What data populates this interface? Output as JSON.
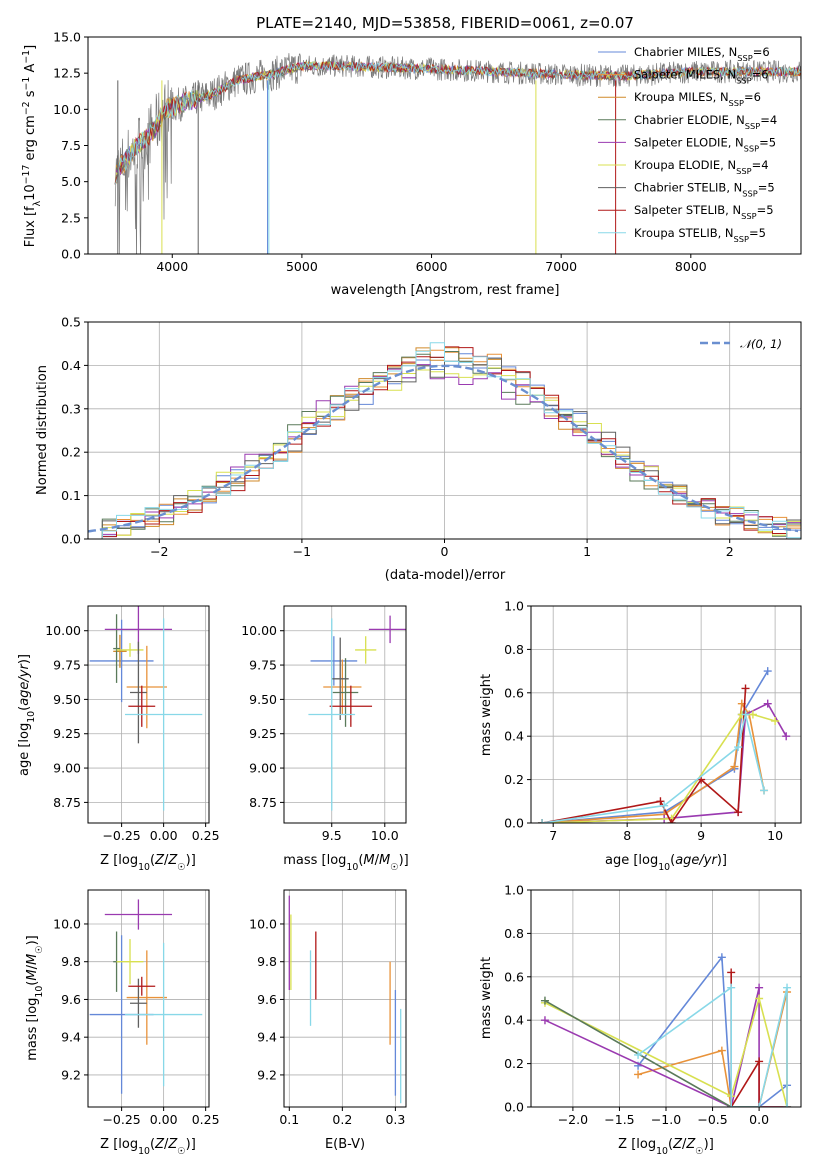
{
  "colors": {
    "Chabrier MILES": "#6488d8",
    "Salpeter MILES": "#e8923a",
    "Kroupa MILES": "#d08a2a",
    "Chabrier ELODIE": "#5a7a5a",
    "Salpeter ELODIE": "#9a3ab0",
    "Kroupa ELODIE": "#d8e050",
    "Chabrier STELIB": "#606060",
    "Salpeter STELIB": "#b01818",
    "Kroupa STELIB": "#88d8e8"
  },
  "chart_data": [
    {
      "id": "spectrum",
      "type": "line",
      "title": "PLATE=2140, MJD=53858, FIBERID=0061, z=0.07",
      "xlabel": "wavelength [Angstrom, rest frame]",
      "ylabel": "Flux [f_λ10^-17 erg cm^-2 s^-1 A^-1]",
      "xlim": [
        3350,
        8850
      ],
      "ylim": [
        0,
        15
      ],
      "xticks": [
        "4000",
        "5000",
        "6000",
        "7000",
        "8000"
      ],
      "yticks": [
        "0.0",
        "2.5",
        "5.0",
        "7.5",
        "10.0",
        "12.5",
        "15.0"
      ],
      "legend_position": "right",
      "legend": [
        {
          "base": "Chabrier MILES, N",
          "sub": "SSP",
          "tail": "=6",
          "color": "#6488d8"
        },
        {
          "base": "Salpeter MILES, N",
          "sub": "SSP",
          "tail": "=6",
          "color": "#e8923a"
        },
        {
          "base": "Kroupa MILES, N",
          "sub": "SSP",
          "tail": "=6",
          "color": "#d08a2a"
        },
        {
          "base": "Chabrier ELODIE, N",
          "sub": "SSP",
          "tail": "=4",
          "color": "#5a7a5a"
        },
        {
          "base": "Salpeter ELODIE, N",
          "sub": "SSP",
          "tail": "=5",
          "color": "#9a3ab0"
        },
        {
          "base": "Kroupa ELODIE, N",
          "sub": "SSP",
          "tail": "=4",
          "color": "#d8e050"
        },
        {
          "base": "Chabrier STELIB, N",
          "sub": "SSP",
          "tail": "=5",
          "color": "#606060"
        },
        {
          "base": "Salpeter STELIB, N",
          "sub": "SSP",
          "tail": "=5",
          "color": "#b01818"
        },
        {
          "base": "Kroupa STELIB, N",
          "sub": "SSP",
          "tail": "=5",
          "color": "#88d8e8"
        }
      ],
      "data_points": [
        [
          3560,
          5.5
        ],
        [
          3700,
          7.2
        ],
        [
          3850,
          8.5
        ],
        [
          3950,
          10.0
        ],
        [
          4100,
          10.5
        ],
        [
          4300,
          11.0
        ],
        [
          4500,
          12.0
        ],
        [
          4800,
          12.5
        ],
        [
          5000,
          13.0
        ],
        [
          5300,
          13.0
        ],
        [
          5600,
          12.9
        ],
        [
          6000,
          12.8
        ],
        [
          6500,
          12.6
        ],
        [
          7000,
          12.4
        ],
        [
          7500,
          12.3
        ],
        [
          8000,
          12.6
        ],
        [
          8500,
          12.6
        ],
        [
          8850,
          12.6
        ]
      ]
    },
    {
      "id": "residuals",
      "type": "line",
      "xlabel": "(data-model)/error",
      "ylabel": "Normed distribution",
      "xlim": [
        -2.5,
        2.5
      ],
      "ylim": [
        0,
        0.5
      ],
      "xticks": [
        "−2",
        "−1",
        "0",
        "1",
        "2"
      ],
      "yticks": [
        "0.0",
        "0.1",
        "0.2",
        "0.3",
        "0.4",
        "0.5"
      ],
      "legend": "𝒩(0, 1)",
      "reference_curve": "normal(0,1)",
      "reference_color": "#6a8fd0"
    },
    {
      "id": "age_vs_Z",
      "type": "scatter",
      "xlabel": "Z [log10(Z/Z☉)]",
      "ylabel": "age  [log10(age/yr)]",
      "xlim": [
        -0.45,
        0.27
      ],
      "ylim": [
        8.6,
        10.18
      ],
      "xticks": [
        "−0.25",
        "0.00",
        "0.25"
      ],
      "yticks": [
        "8.75",
        "9.00",
        "9.25",
        "9.50",
        "9.75",
        "10.00"
      ],
      "points": [
        {
          "model": "Chabrier MILES",
          "x": -0.25,
          "xerr": 0.19,
          "y": 9.78,
          "yerr": 0.3
        },
        {
          "model": "Salpeter MILES",
          "x": -0.1,
          "xerr": 0.12,
          "y": 9.59,
          "yerr": 0.3
        },
        {
          "model": "Kroupa MILES",
          "x": -0.26,
          "xerr": 0.04,
          "y": 9.85,
          "yerr": 0.12
        },
        {
          "model": "Chabrier ELODIE",
          "x": -0.28,
          "xerr": 0.02,
          "y": 9.87,
          "yerr": 0.25
        },
        {
          "model": "Salpeter ELODIE",
          "x": -0.15,
          "xerr": 0.2,
          "y": 10.01,
          "yerr": 0.18
        },
        {
          "model": "Kroupa ELODIE",
          "x": -0.2,
          "xerr": 0.08,
          "y": 9.86,
          "yerr": 0.05
        },
        {
          "model": "Chabrier STELIB",
          "x": -0.15,
          "xerr": 0.05,
          "y": 9.55,
          "yerr": 0.37
        },
        {
          "model": "Salpeter STELIB",
          "x": -0.13,
          "xerr": 0.08,
          "y": 9.45,
          "yerr": 0.15
        },
        {
          "model": "Kroupa STELIB",
          "x": 0.0,
          "xerr": 0.23,
          "y": 9.39,
          "yerr": 0.7
        }
      ]
    },
    {
      "id": "age_vs_mass",
      "type": "scatter",
      "xlabel": "mass [log10(M/M☉)]",
      "xlim": [
        9.05,
        10.2
      ],
      "ylim": [
        8.6,
        10.18
      ],
      "xticks": [
        "9.5",
        "10.0"
      ],
      "yticks": [
        "8.75",
        "9.00",
        "9.25",
        "9.50",
        "9.75",
        "10.00"
      ],
      "points": [
        {
          "model": "Chabrier MILES",
          "x": 9.52,
          "xerr": 0.22,
          "y": 9.78,
          "yerr": 0.18
        },
        {
          "model": "Salpeter MILES",
          "x": 9.6,
          "xerr": 0.18,
          "y": 9.59,
          "yerr": 0.2
        },
        {
          "model": "Chabrier ELODIE",
          "x": 9.63,
          "xerr": 0.12,
          "y": 9.55,
          "yerr": 0.25
        },
        {
          "model": "Salpeter ELODIE",
          "x": 10.05,
          "xerr": 0.2,
          "y": 10.01,
          "yerr": 0.1
        },
        {
          "model": "Kroupa ELODIE",
          "x": 9.82,
          "xerr": 0.1,
          "y": 9.86,
          "yerr": 0.1
        },
        {
          "model": "Chabrier STELIB",
          "x": 9.58,
          "xerr": 0.08,
          "y": 9.65,
          "yerr": 0.3
        },
        {
          "model": "Salpeter STELIB",
          "x": 9.68,
          "xerr": 0.2,
          "y": 9.45,
          "yerr": 0.15
        },
        {
          "model": "Kroupa STELIB",
          "x": 9.5,
          "xerr": 0.22,
          "y": 9.39,
          "yerr": 0.7
        }
      ]
    },
    {
      "id": "weight_vs_age",
      "type": "line",
      "xlabel": "age  [log10(age/yr)]",
      "ylabel": "mass weight",
      "xlim": [
        6.7,
        10.35
      ],
      "ylim": [
        0,
        1
      ],
      "xticks": [
        "7",
        "8",
        "9",
        "10"
      ],
      "yticks": [
        "0.0",
        "0.2",
        "0.4",
        "0.6",
        "0.8",
        "1.0"
      ],
      "series": [
        {
          "model": "Chabrier MILES",
          "points": [
            [
              6.85,
              0.0
            ],
            [
              8.5,
              0.05
            ],
            [
              9.45,
              0.25
            ],
            [
              9.55,
              0.5
            ],
            [
              9.9,
              0.7
            ]
          ]
        },
        {
          "model": "Salpeter MILES",
          "points": [
            [
              6.85,
              0.0
            ],
            [
              8.5,
              0.04
            ],
            [
              9.45,
              0.26
            ],
            [
              9.55,
              0.55
            ],
            [
              9.65,
              0.5
            ],
            [
              9.85,
              0.15
            ]
          ]
        },
        {
          "model": "Salpeter ELODIE",
          "points": [
            [
              6.85,
              0.0
            ],
            [
              8.5,
              0.02
            ],
            [
              9.5,
              0.05
            ],
            [
              9.6,
              0.5
            ],
            [
              9.9,
              0.55
            ],
            [
              10.15,
              0.4
            ]
          ]
        },
        {
          "model": "Kroupa ELODIE",
          "points": [
            [
              6.85,
              0.0
            ],
            [
              8.6,
              0.02
            ],
            [
              9.55,
              0.5
            ],
            [
              9.7,
              0.5
            ],
            [
              10.0,
              0.47
            ]
          ]
        },
        {
          "model": "Salpeter STELIB",
          "points": [
            [
              6.85,
              0.0
            ],
            [
              8.45,
              0.1
            ],
            [
              8.6,
              0.0
            ],
            [
              9.0,
              0.2
            ],
            [
              9.5,
              0.05
            ],
            [
              9.6,
              0.62
            ]
          ]
        },
        {
          "model": "Kroupa STELIB",
          "points": [
            [
              6.85,
              0.0
            ],
            [
              8.5,
              0.08
            ],
            [
              9.5,
              0.35
            ],
            [
              9.6,
              0.5
            ],
            [
              9.85,
              0.15
            ]
          ]
        }
      ]
    },
    {
      "id": "mass_vs_Z",
      "type": "scatter",
      "xlabel": "Z [log10(Z/Z☉)]",
      "ylabel": "mass [log10(M/M☉)]",
      "xlim": [
        -0.45,
        0.27
      ],
      "ylim": [
        9.03,
        10.18
      ],
      "xticks": [
        "−0.25",
        "0.00",
        "0.25"
      ],
      "yticks": [
        "9.2",
        "9.4",
        "9.6",
        "9.8",
        "10.0"
      ],
      "points": [
        {
          "model": "Chabrier MILES",
          "x": -0.25,
          "xerr": 0.19,
          "y": 9.52,
          "yerr": 0.42
        },
        {
          "model": "Salpeter MILES",
          "x": -0.1,
          "xerr": 0.12,
          "y": 9.61,
          "yerr": 0.25
        },
        {
          "model": "Chabrier ELODIE",
          "x": -0.28,
          "xerr": 0.02,
          "y": 9.8,
          "yerr": 0.16
        },
        {
          "model": "Salpeter ELODIE",
          "x": -0.15,
          "xerr": 0.2,
          "y": 10.05,
          "yerr": 0.08
        },
        {
          "model": "Kroupa ELODIE",
          "x": -0.2,
          "xerr": 0.08,
          "y": 9.8,
          "yerr": 0.12
        },
        {
          "model": "Chabrier STELIB",
          "x": -0.15,
          "xerr": 0.05,
          "y": 9.58,
          "yerr": 0.13
        },
        {
          "model": "Salpeter STELIB",
          "x": -0.13,
          "xerr": 0.08,
          "y": 9.67,
          "yerr": 0.05
        },
        {
          "model": "Kroupa STELIB",
          "x": 0.0,
          "xerr": 0.23,
          "y": 9.52,
          "yerr": 0.38
        }
      ]
    },
    {
      "id": "mass_vs_EBV",
      "type": "scatter",
      "xlabel": "E(B-V)",
      "xlim": [
        0.09,
        0.32
      ],
      "ylim": [
        9.03,
        10.18
      ],
      "xticks": [
        "0.1",
        "0.2",
        "0.3"
      ],
      "yticks": [
        "9.2",
        "9.4",
        "9.6",
        "9.8",
        "10.0"
      ],
      "points": [
        {
          "model": "Salpeter ELODIE",
          "x": 0.1,
          "y": 9.9,
          "yerr": 0.25
        },
        {
          "model": "Kroupa ELODIE",
          "x": 0.103,
          "y": 9.85,
          "yerr": 0.2
        },
        {
          "model": "Kroupa STELIB",
          "x": 0.14,
          "y": 9.66,
          "yerr": 0.2
        },
        {
          "model": "Salpeter STELIB",
          "x": 0.15,
          "y": 9.78,
          "yerr": 0.18
        },
        {
          "model": "Salpeter MILES",
          "x": 0.29,
          "y": 9.58,
          "yerr": 0.22
        },
        {
          "model": "Chabrier MILES",
          "x": 0.3,
          "y": 9.37,
          "yerr": 0.28
        },
        {
          "model": "Kroupa STELIB",
          "x": 0.31,
          "y": 9.3,
          "yerr": 0.25
        }
      ]
    },
    {
      "id": "weight_vs_Z",
      "type": "line",
      "xlabel": "Z [log10(Z/Z☉)]",
      "ylabel": "mass weight",
      "xlim": [
        -2.45,
        0.45
      ],
      "ylim": [
        0,
        1
      ],
      "xticks": [
        "−2.0",
        "−1.5",
        "−1.0",
        "−0.5",
        "0.0"
      ],
      "yticks": [
        "0.0",
        "0.2",
        "0.4",
        "0.6",
        "0.8",
        "1.0"
      ],
      "series": [
        {
          "model": "Chabrier MILES",
          "points": [
            [
              -1.3,
              0.19
            ],
            [
              -0.4,
              0.69
            ],
            [
              -0.3,
              0.0
            ],
            [
              0.0,
              0.0
            ],
            [
              0.3,
              0.1
            ]
          ]
        },
        {
          "model": "Salpeter MILES",
          "points": [
            [
              -1.3,
              0.15
            ],
            [
              -0.4,
              0.26
            ],
            [
              -0.3,
              0.0
            ],
            [
              0.0,
              0.0
            ],
            [
              0.3,
              0.53
            ],
            [
              0.3,
              0.0
            ]
          ]
        },
        {
          "model": "Salpeter ELODIE",
          "points": [
            [
              -2.3,
              0.4
            ],
            [
              -0.3,
              0.0
            ],
            [
              0.0,
              0.55
            ],
            [
              0.0,
              0.0
            ],
            [
              0.3,
              0.0
            ]
          ]
        },
        {
          "model": "Kroupa ELODIE",
          "points": [
            [
              -2.3,
              0.48
            ],
            [
              -0.3,
              0.05
            ],
            [
              0.0,
              0.5
            ],
            [
              0.3,
              0.0
            ]
          ]
        },
        {
          "model": "Chabrier ELODIE",
          "points": [
            [
              -2.3,
              0.49
            ],
            [
              -0.3,
              0.0
            ],
            [
              0.0,
              0.0
            ]
          ]
        },
        {
          "model": "Salpeter STELIB",
          "points": [
            [
              -0.3,
              0.62
            ],
            [
              -0.3,
              0.0
            ],
            [
              0.0,
              0.21
            ],
            [
              0.0,
              0.0
            ],
            [
              0.3,
              0.0
            ]
          ]
        },
        {
          "model": "Kroupa STELIB",
          "points": [
            [
              -1.3,
              0.24
            ],
            [
              -0.3,
              0.55
            ],
            [
              -0.3,
              0.0
            ],
            [
              0.0,
              0.0
            ],
            [
              0.3,
              0.55
            ],
            [
              0.3,
              0.0
            ]
          ]
        }
      ]
    }
  ]
}
